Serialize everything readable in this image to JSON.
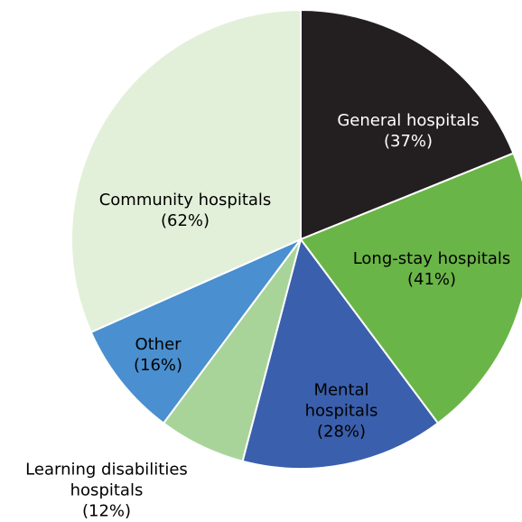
{
  "chart_data": {
    "type": "pie",
    "categories": [
      "General hospitals",
      "Long-stay hospitals",
      "Mental hospitals",
      "Learning disabilities hospitals",
      "Other",
      "Community hospitals"
    ],
    "values": [
      37,
      41,
      28,
      12,
      16,
      62
    ],
    "value_labels": [
      "(37%)",
      "(41%)",
      "(28%)",
      "(12%)",
      "(16%)",
      "(62%)"
    ],
    "colors": [
      "#231f20",
      "#6ab547",
      "#3a5fac",
      "#a8d49a",
      "#4a8fcf",
      "#e2f0d9"
    ]
  }
}
